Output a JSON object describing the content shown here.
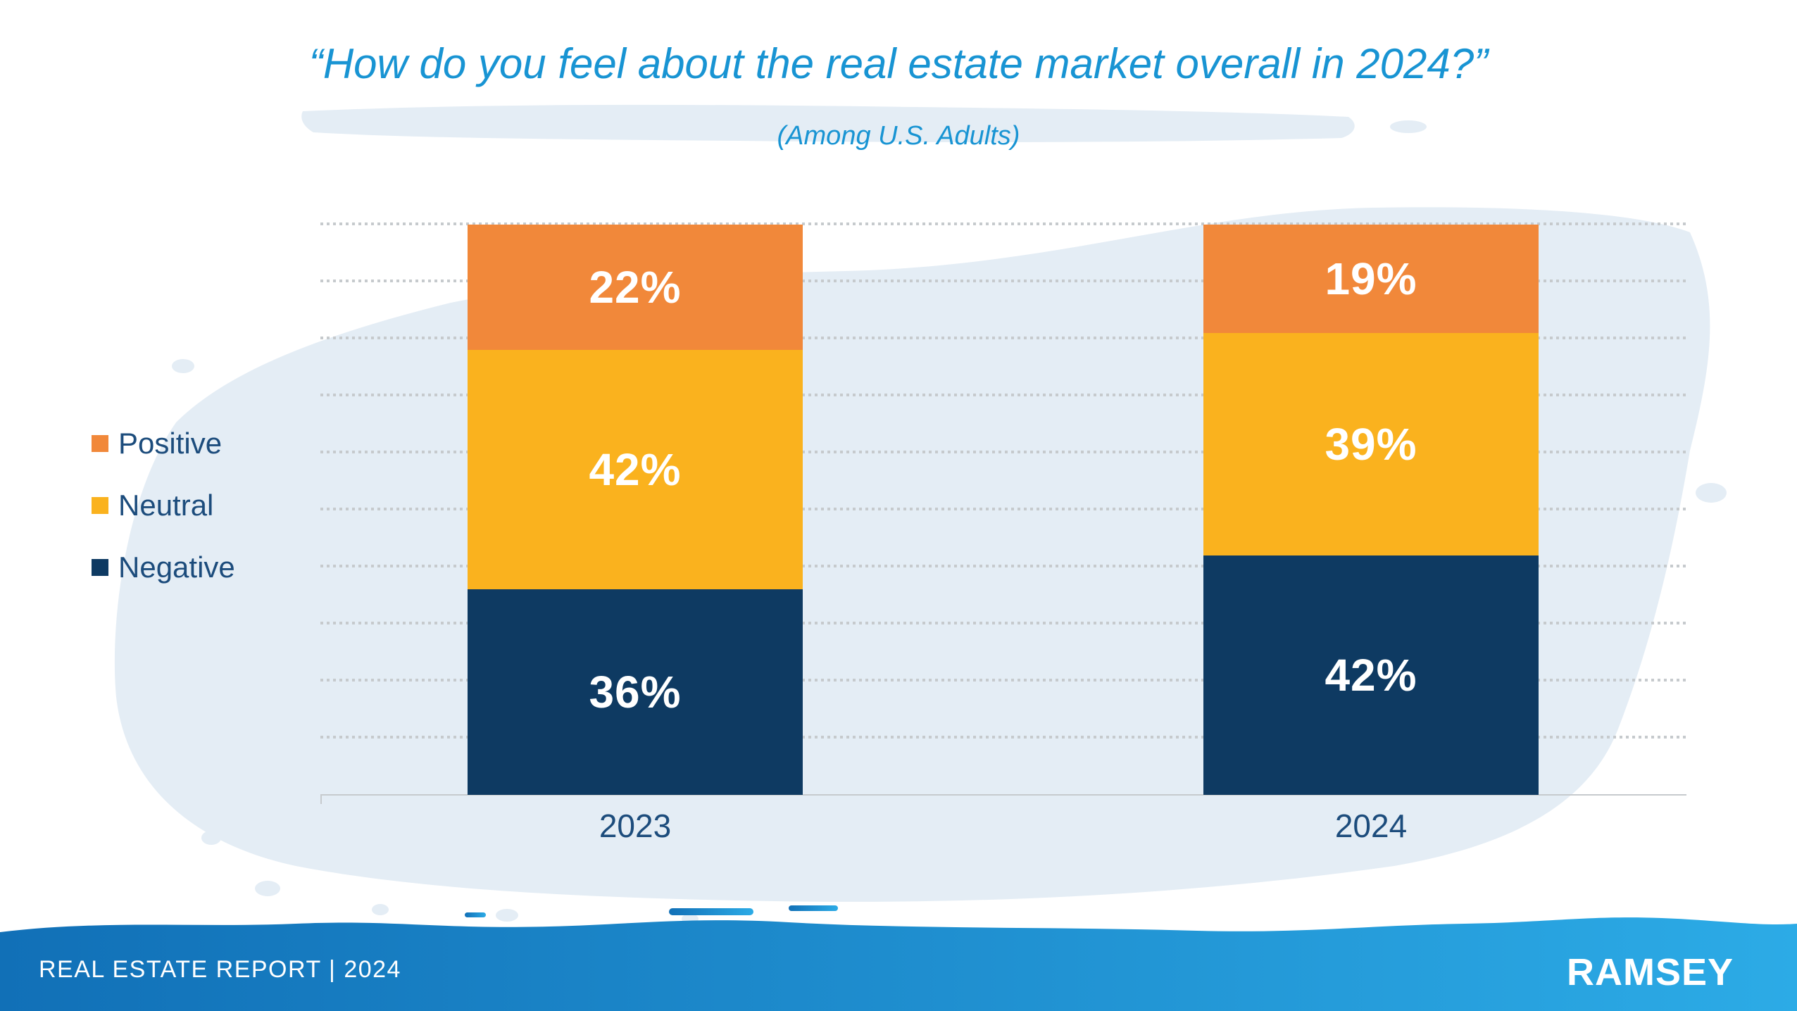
{
  "title": {
    "text": "“How do you feel about the real estate market overall in 2024?”",
    "subtitle": "(Among U.S. Adults)"
  },
  "legend": {
    "items": [
      {
        "label": "Positive",
        "color": "#F1883A"
      },
      {
        "label": "Neutral",
        "color": "#FAB21E"
      },
      {
        "label": "Negative",
        "color": "#0E3A62"
      }
    ]
  },
  "chart_data": {
    "type": "bar",
    "stacked": true,
    "categories": [
      "2023",
      "2024"
    ],
    "series": [
      {
        "name": "Positive",
        "values": [
          22,
          19
        ],
        "color": "#F1883A"
      },
      {
        "name": "Neutral",
        "values": [
          42,
          39
        ],
        "color": "#FAB21E"
      },
      {
        "name": "Negative",
        "values": [
          36,
          42
        ],
        "color": "#0E3A62"
      }
    ],
    "title": "“How do you feel about the real estate market overall in 2024?”",
    "subtitle": "(Among U.S. Adults)",
    "xlabel": "",
    "ylabel": "",
    "ylim": [
      0,
      100
    ],
    "grid": "dotted horizontal lines every 10%",
    "legend_position": "left",
    "data_labels": [
      "22%",
      "42%",
      "36%",
      "19%",
      "39%",
      "42%"
    ]
  },
  "bars": {
    "y2023": {
      "label": "2023",
      "positive": "22%",
      "neutral": "42%",
      "negative": "36%"
    },
    "y2024": {
      "label": "2024",
      "positive": "19%",
      "neutral": "39%",
      "negative": "42%"
    }
  },
  "footer": {
    "report_label": "REAL ESTATE REPORT | 2024",
    "brand": "RAMSEY"
  },
  "colors": {
    "title_blue": "#1894D3",
    "text_navy": "#1C4C7C",
    "gridline_gray": "#C6CACD",
    "watercolor_blue": "#E4EDF5",
    "footer_gradient_left": "#1170B7",
    "footer_gradient_right": "#2CABE6"
  }
}
